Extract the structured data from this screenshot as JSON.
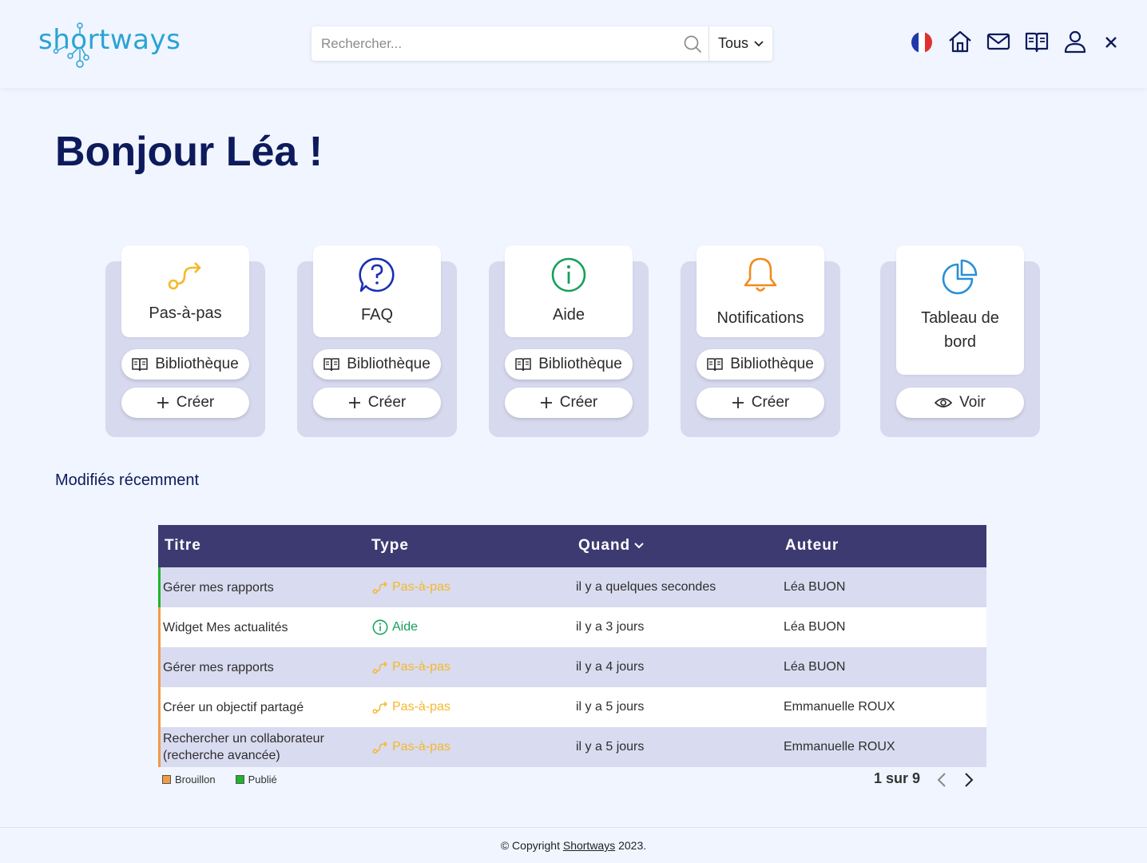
{
  "header": {
    "logo_text": "shortways",
    "search_placeholder": "Rechercher...",
    "scope": "Tous",
    "icons": [
      "flag-fr-icon",
      "home-icon",
      "mail-icon",
      "book-icon",
      "user-icon",
      "close-icon"
    ]
  },
  "greeting": "Bonjour Léa !",
  "cards": [
    {
      "title": "Pas-à-pas",
      "icon": "route-icon",
      "library": "Bibliothèque",
      "create": "Créer"
    },
    {
      "title": "FAQ",
      "icon": "question-bubble-icon",
      "library": "Bibliothèque",
      "create": "Créer"
    },
    {
      "title": "Aide",
      "icon": "info-icon",
      "library": "Bibliothèque",
      "create": "Créer"
    },
    {
      "title": "Notifications",
      "icon": "bell-icon",
      "library": "Bibliothèque",
      "create": "Créer"
    },
    {
      "title_line1": "Tableau de",
      "title_line2": "bord",
      "icon": "pie-chart-icon",
      "view": "Voir"
    }
  ],
  "recent": {
    "title": "Modifiés récemment",
    "columns": [
      "Titre",
      "Type",
      "Quand",
      "Auteur"
    ],
    "rows": [
      {
        "title": "Gérer mes rapports",
        "type": "Pas-à-pas",
        "when": "il y a quelques secondes",
        "author": "Léa BUON",
        "status": "Publié"
      },
      {
        "title": "Widget Mes actualités",
        "type": "Aide",
        "when": "il y a 3 jours",
        "author": "Léa BUON",
        "status": "Brouillon"
      },
      {
        "title": "Gérer mes rapports",
        "type": "Pas-à-pas",
        "when": "il y a 4 jours",
        "author": "Léa BUON",
        "status": "Brouillon"
      },
      {
        "title": "Créer un objectif partagé",
        "type": "Pas-à-pas",
        "when": "il y a 5 jours",
        "author": "Emmanuelle ROUX",
        "status": "Brouillon"
      },
      {
        "title": "Rechercher un collaborateur (recherche avancée)",
        "type": "Pas-à-pas",
        "when": "il y a 5 jours",
        "author": "Emmanuelle ROUX",
        "status": "Brouillon"
      }
    ],
    "legend": [
      {
        "label": "Brouillon",
        "color": "#f29a45"
      },
      {
        "label": "Publié",
        "color": "#1db52c"
      }
    ],
    "pager": "1 sur 9"
  },
  "footer": {
    "prefix": "© Copyright",
    "link": "Shortways",
    "suffix": "2023."
  },
  "colors": {
    "brand": "#2aa3d4",
    "navy": "#0d1a5c",
    "table_header": "#3d3a72",
    "step": "#f5b82a",
    "faq": "#1a2fb3",
    "aide": "#16a05a",
    "notif": "#f28a1e",
    "dashboard": "#2a8fd8"
  }
}
